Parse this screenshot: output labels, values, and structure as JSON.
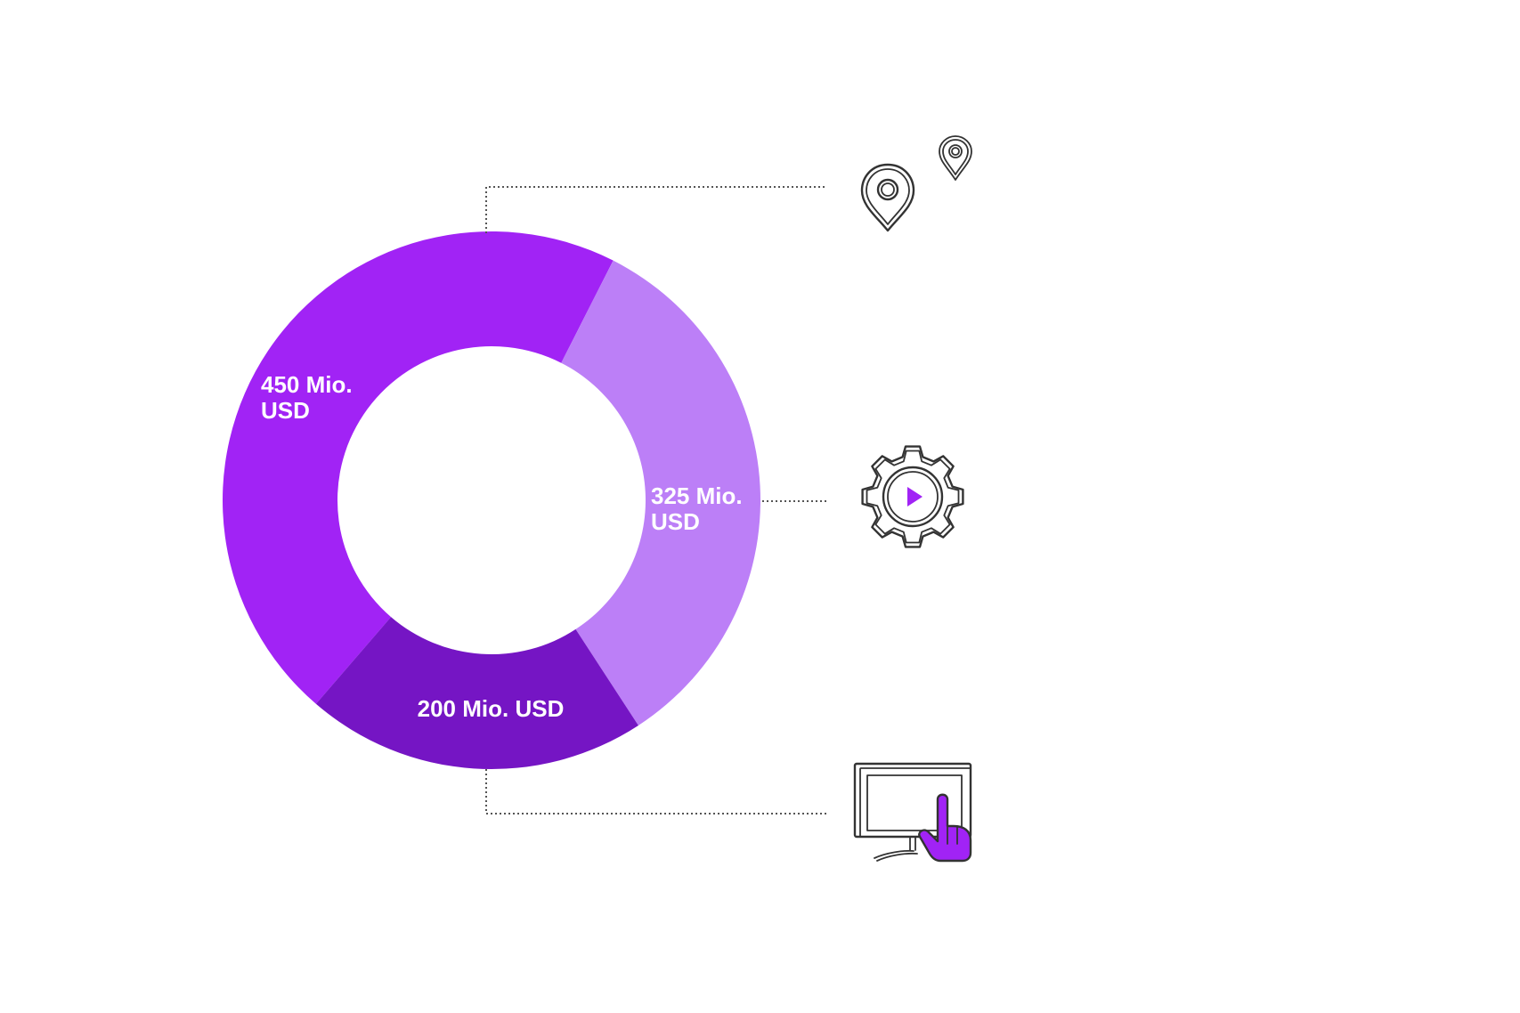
{
  "chart_data": {
    "type": "donut",
    "title": "",
    "slices": [
      {
        "label": "450 Mio.\nUSD",
        "value": 450,
        "color": "#a123f5"
      },
      {
        "label": "325 Mio.\nUSD",
        "value": 325,
        "color": "#bc7ff7"
      },
      {
        "label": "200 Mio. USD",
        "value": 200,
        "color": "#7515c4"
      }
    ],
    "legend": "none"
  },
  "icons": {
    "top": "map-pin-icon",
    "middle": "gear-play-icon",
    "bottom": "monitor-touch-icon"
  },
  "colors": {
    "accent": "#a123f5",
    "icon_outline": "#333333",
    "background": "#ffffff"
  }
}
